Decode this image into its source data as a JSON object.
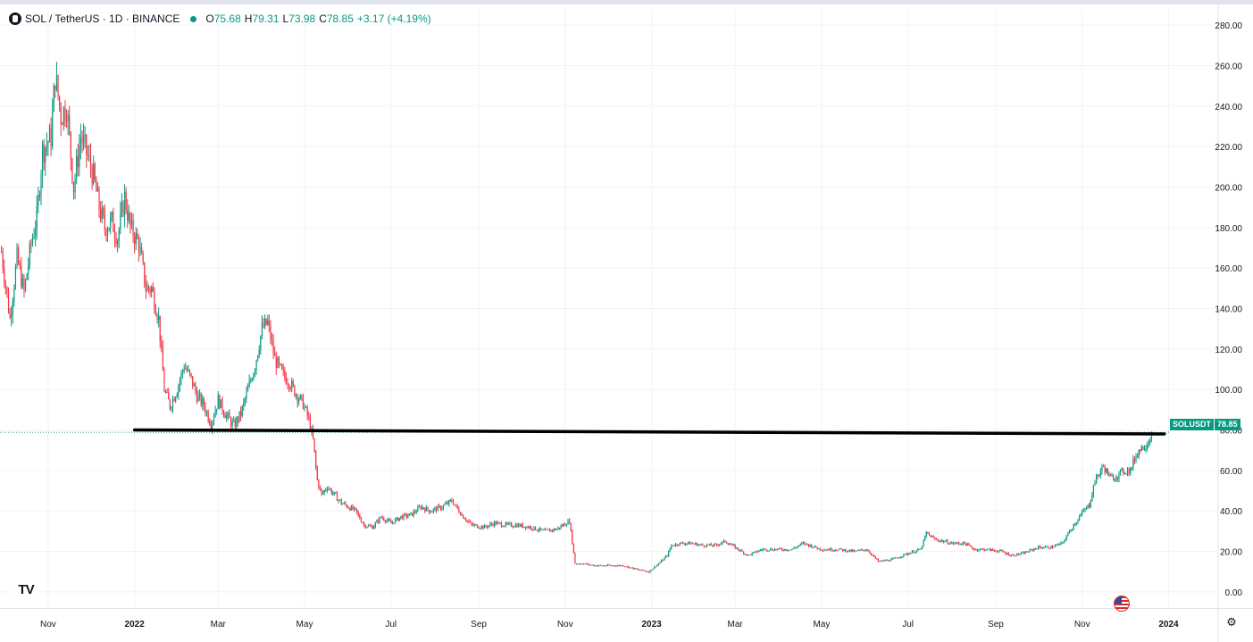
{
  "legend": {
    "title": "SOL / TetherUS · 1D · BINANCE",
    "open_label": "O",
    "open": "75.68",
    "high_label": "H",
    "high": "79.31",
    "low_label": "L",
    "low": "73.98",
    "close_label": "C",
    "close": "78.85",
    "change": "+3.17 (+4.19%)"
  },
  "last_price_tag": {
    "symbol": "SOLUSDT",
    "price": "78.85"
  },
  "logo_text": "TV",
  "icons": {
    "symbol": "symbol-logo-icon",
    "logo": "tradingview-logo-icon",
    "flag": "us-flag-icon",
    "settings": "settings-icon"
  },
  "colors": {
    "up": "#089981",
    "down": "#f23645",
    "support_line": "#000000",
    "grid": "#f0f3fa",
    "axis_text": "#131722"
  },
  "chart_data": {
    "type": "candlestick",
    "title": "SOL / TetherUS · 1D · BINANCE",
    "x_tick_labels": [
      "Nov",
      "2022",
      "Mar",
      "May",
      "Jul",
      "Sep",
      "Nov",
      "2023",
      "Mar",
      "May",
      "Jul",
      "Sep",
      "Nov",
      "2024"
    ],
    "y_tick_labels": [
      "0.00",
      "20.00",
      "40.00",
      "60.00",
      "80.00",
      "100.00",
      "120.00",
      "140.00",
      "160.00",
      "180.00",
      "200.00",
      "220.00",
      "240.00",
      "260.00",
      "280.00"
    ],
    "ylim": [
      -8,
      288
    ],
    "xlim": [
      "2021-09-28",
      "2024-02-05"
    ],
    "grid": true,
    "last_price": 78.85,
    "price_path": [
      [
        "2021-09-29",
        168
      ],
      [
        "2021-10-05",
        135
      ],
      [
        "2021-10-10",
        165
      ],
      [
        "2021-10-15",
        148
      ],
      [
        "2021-10-20",
        172
      ],
      [
        "2021-10-24",
        185
      ],
      [
        "2021-10-28",
        218
      ],
      [
        "2021-11-03",
        225
      ],
      [
        "2021-11-06",
        255
      ],
      [
        "2021-11-10",
        235
      ],
      [
        "2021-11-14",
        240
      ],
      [
        "2021-11-19",
        200
      ],
      [
        "2021-11-24",
        225
      ],
      [
        "2021-11-29",
        215
      ],
      [
        "2021-12-03",
        205
      ],
      [
        "2021-12-07",
        190
      ],
      [
        "2021-12-11",
        180
      ],
      [
        "2021-12-16",
        183
      ],
      [
        "2021-12-20",
        175
      ],
      [
        "2021-12-25",
        195
      ],
      [
        "2021-12-29",
        180
      ],
      [
        "2022-01-04",
        172
      ],
      [
        "2022-01-09",
        150
      ],
      [
        "2022-01-13",
        150
      ],
      [
        "2022-01-18",
        135
      ],
      [
        "2022-01-22",
        100
      ],
      [
        "2022-01-26",
        92
      ],
      [
        "2022-01-31",
        100
      ],
      [
        "2022-02-05",
        112
      ],
      [
        "2022-02-10",
        105
      ],
      [
        "2022-02-14",
        97
      ],
      [
        "2022-02-19",
        92
      ],
      [
        "2022-02-24",
        83
      ],
      [
        "2022-03-01",
        95
      ],
      [
        "2022-03-06",
        88
      ],
      [
        "2022-03-12",
        82
      ],
      [
        "2022-03-17",
        88
      ],
      [
        "2022-03-22",
        100
      ],
      [
        "2022-03-27",
        112
      ],
      [
        "2022-04-01",
        130
      ],
      [
        "2022-04-05",
        133
      ],
      [
        "2022-04-10",
        115
      ],
      [
        "2022-04-15",
        108
      ],
      [
        "2022-04-20",
        104
      ],
      [
        "2022-04-25",
        98
      ],
      [
        "2022-04-30",
        93
      ],
      [
        "2022-05-04",
        85
      ],
      [
        "2022-05-07",
        75
      ],
      [
        "2022-05-10",
        55
      ],
      [
        "2022-05-13",
        48
      ],
      [
        "2022-05-17",
        52
      ],
      [
        "2022-05-22",
        48
      ],
      [
        "2022-05-27",
        44
      ],
      [
        "2022-06-01",
        42
      ],
      [
        "2022-06-06",
        40
      ],
      [
        "2022-06-12",
        33
      ],
      [
        "2022-06-18",
        32
      ],
      [
        "2022-06-24",
        37
      ],
      [
        "2022-07-01",
        34
      ],
      [
        "2022-07-08",
        37
      ],
      [
        "2022-07-15",
        38
      ],
      [
        "2022-07-22",
        42
      ],
      [
        "2022-07-29",
        40
      ],
      [
        "2022-08-06",
        42
      ],
      [
        "2022-08-13",
        45
      ],
      [
        "2022-08-20",
        38
      ],
      [
        "2022-08-27",
        33
      ],
      [
        "2022-09-05",
        32
      ],
      [
        "2022-09-12",
        34
      ],
      [
        "2022-09-20",
        33
      ],
      [
        "2022-09-28",
        33
      ],
      [
        "2022-10-07",
        32
      ],
      [
        "2022-10-17",
        30
      ],
      [
        "2022-10-26",
        31
      ],
      [
        "2022-11-04",
        35
      ],
      [
        "2022-11-08",
        14
      ],
      [
        "2022-11-13",
        14
      ],
      [
        "2022-11-22",
        13
      ],
      [
        "2022-12-01",
        13
      ],
      [
        "2022-12-12",
        13
      ],
      [
        "2022-12-22",
        11
      ],
      [
        "2022-12-30",
        10
      ],
      [
        "2023-01-06",
        14
      ],
      [
        "2023-01-12",
        18
      ],
      [
        "2023-01-15",
        23
      ],
      [
        "2023-01-22",
        24
      ],
      [
        "2023-01-29",
        24
      ],
      [
        "2023-02-06",
        23
      ],
      [
        "2023-02-15",
        23
      ],
      [
        "2023-02-22",
        25
      ],
      [
        "2023-03-01",
        22
      ],
      [
        "2023-03-10",
        18
      ],
      [
        "2023-03-20",
        21
      ],
      [
        "2023-04-01",
        21
      ],
      [
        "2023-04-10",
        21
      ],
      [
        "2023-04-18",
        24
      ],
      [
        "2023-05-01",
        21
      ],
      [
        "2023-05-12",
        21
      ],
      [
        "2023-05-24",
        20
      ],
      [
        "2023-06-02",
        21
      ],
      [
        "2023-06-10",
        15
      ],
      [
        "2023-06-20",
        16
      ],
      [
        "2023-07-01",
        19
      ],
      [
        "2023-07-10",
        21
      ],
      [
        "2023-07-14",
        29
      ],
      [
        "2023-07-20",
        26
      ],
      [
        "2023-08-01",
        24
      ],
      [
        "2023-08-10",
        24
      ],
      [
        "2023-08-17",
        21
      ],
      [
        "2023-08-25",
        21
      ],
      [
        "2023-09-05",
        20
      ],
      [
        "2023-09-12",
        18
      ],
      [
        "2023-09-20",
        19
      ],
      [
        "2023-10-01",
        22
      ],
      [
        "2023-10-10",
        22
      ],
      [
        "2023-10-18",
        24
      ],
      [
        "2023-10-24",
        31
      ],
      [
        "2023-11-01",
        39
      ],
      [
        "2023-11-06",
        43
      ],
      [
        "2023-11-10",
        55
      ],
      [
        "2023-11-16",
        62
      ],
      [
        "2023-11-21",
        56
      ],
      [
        "2023-11-27",
        58
      ],
      [
        "2023-12-01",
        60
      ],
      [
        "2023-12-05",
        60
      ],
      [
        "2023-12-08",
        66
      ],
      [
        "2023-12-11",
        70
      ],
      [
        "2023-12-16",
        73
      ],
      [
        "2023-12-19",
        75.68
      ],
      [
        "2023-12-20",
        78.85
      ]
    ],
    "annotations": [
      {
        "type": "horizontal_trendline",
        "from": [
          "2022-01-01",
          80
        ],
        "to": [
          "2023-12-29",
          78
        ],
        "color": "#000000"
      }
    ]
  }
}
